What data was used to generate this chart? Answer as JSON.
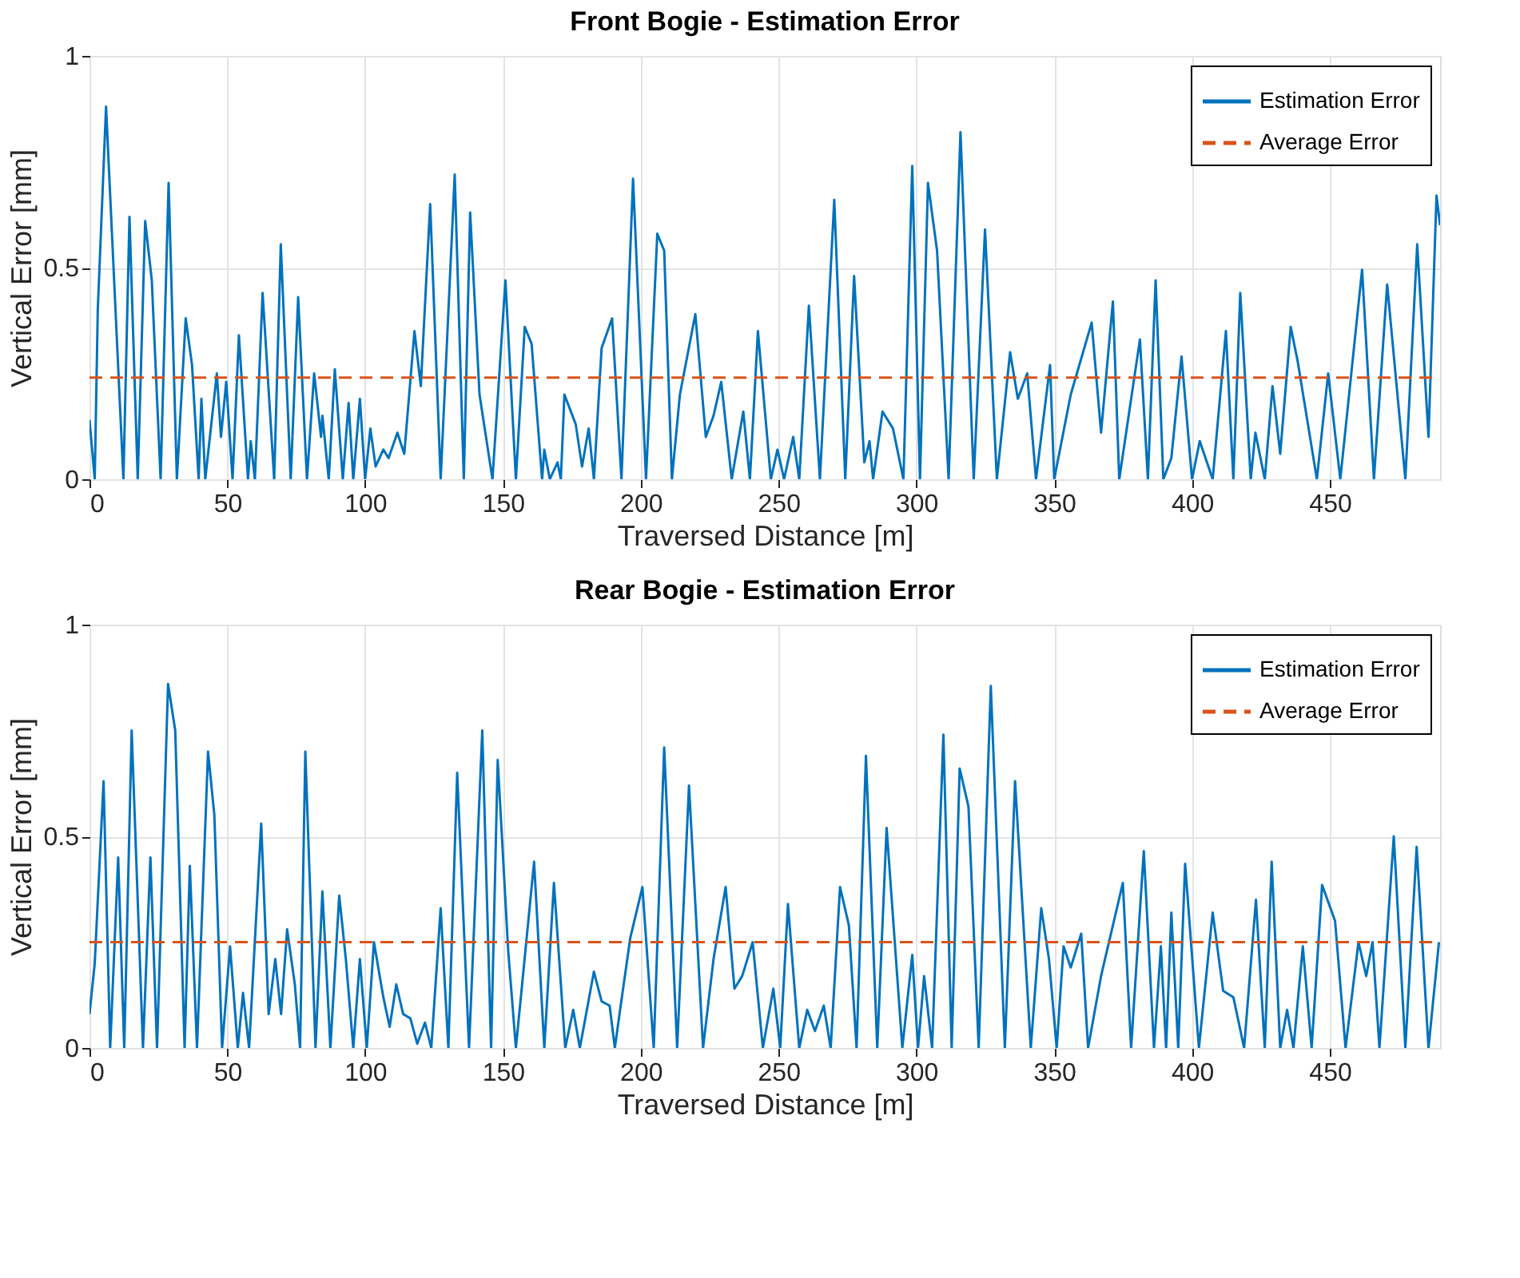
{
  "chart_data": [
    {
      "type": "line",
      "title": "Front Bogie - Estimation Error",
      "xlabel": "Traversed Distance [m]",
      "ylabel": "Vertical Error [mm]",
      "xlim": [
        0,
        490
      ],
      "ylim": [
        0,
        1
      ],
      "xticks": [
        0,
        50,
        100,
        150,
        200,
        250,
        300,
        350,
        400,
        450
      ],
      "yticks": [
        0,
        0.5,
        1
      ],
      "grid": true,
      "legend": "top right",
      "line_style": "solid",
      "marker": "none",
      "series": [
        {
          "name": "Estimation Error",
          "color": "#0072bd",
          "x": [
            0,
            1.9,
            3,
            6,
            12.3,
            14.5,
            17.5,
            20.2,
            22.6,
            25.8,
            28.7,
            31.7,
            34.9,
            37.2,
            39.6,
            40.6,
            42,
            46.2,
            47.7,
            49.6,
            51.9,
            54.2,
            57.5,
            58.5,
            60,
            62.8,
            67,
            69.4,
            73,
            75.7,
            78.9,
            81.5,
            84,
            84.5,
            86.8,
            89,
            91.9,
            94,
            95.7,
            98.1,
            100,
            101.9,
            103.8,
            106.6,
            108.5,
            111.7,
            114.2,
            117.9,
            120.2,
            123.6,
            127.4,
            132.5,
            135.8,
            138.1,
            141.5,
            146.2,
            150.9,
            154.7,
            157.9,
            160.4,
            164.2,
            165,
            167,
            169.8,
            171,
            172.3,
            176.4,
            178.7,
            181.1,
            183,
            185.8,
            189.6,
            193,
            197.2,
            201.9,
            206,
            208.5,
            211.3,
            214.2,
            219.8,
            223.6,
            226.4,
            229.2,
            233,
            237.2,
            239.6,
            242.5,
            247.2,
            249.6,
            252,
            255.3,
            257.5,
            261,
            265,
            270.2,
            274.2,
            277.4,
            281.1,
            283,
            284.3,
            287.7,
            291.5,
            295.3,
            298.5,
            301.3,
            304.2,
            307.5,
            311.7,
            316,
            320.8,
            324.9,
            329.2,
            334,
            336.8,
            340.2,
            343.4,
            348.5,
            350,
            356,
            363.6,
            367,
            371.3,
            373.6,
            381.1,
            384,
            386.8,
            389.6,
            392.5,
            396.2,
            400,
            402.8,
            407.5,
            412.3,
            415,
            417.5,
            421.3,
            423,
            426.4,
            429.2,
            432,
            435.8,
            438.3,
            445.3,
            449.4,
            453.8,
            461.7,
            466,
            470.8,
            477.4,
            481.7,
            485.8,
            488.7,
            490
          ],
          "values": [
            0.14,
            0,
            0.4,
            0.88,
            0,
            0.62,
            0,
            0.61,
            0.47,
            0,
            0.7,
            0,
            0.38,
            0.27,
            0,
            0.19,
            0,
            0.25,
            0.1,
            0.23,
            0,
            0.34,
            0,
            0.09,
            0,
            0.44,
            0,
            0.555,
            0,
            0.43,
            0,
            0.25,
            0.1,
            0.15,
            0,
            0.26,
            0,
            0.18,
            0,
            0.19,
            0,
            0.12,
            0.03,
            0.07,
            0.05,
            0.11,
            0.06,
            0.35,
            0.22,
            0.65,
            0,
            0.72,
            0,
            0.63,
            0.2,
            0,
            0.47,
            0,
            0.36,
            0.32,
            0,
            0.07,
            0,
            0.04,
            0,
            0.2,
            0.13,
            0.03,
            0.12,
            0,
            0.31,
            0.38,
            0,
            0.71,
            0,
            0.58,
            0.54,
            0,
            0.2,
            0.39,
            0.1,
            0.15,
            0.23,
            0,
            0.16,
            0,
            0.35,
            0,
            0.07,
            0,
            0.1,
            0,
            0.41,
            0,
            0.66,
            0,
            0.48,
            0.04,
            0.09,
            0,
            0.16,
            0.12,
            0,
            0.74,
            0,
            0.7,
            0.54,
            0,
            0.82,
            0,
            0.59,
            0,
            0.3,
            0.19,
            0.25,
            0,
            0.27,
            0,
            0.2,
            0.37,
            0.11,
            0.42,
            0,
            0.33,
            0,
            0.47,
            0,
            0.05,
            0.29,
            0,
            0.09,
            0,
            0.35,
            0,
            0.44,
            0,
            0.11,
            0,
            0.22,
            0.06,
            0.36,
            0.28,
            0,
            0.25,
            0,
            0.495,
            0,
            0.46,
            0,
            0.555,
            0.1,
            0.67,
            0.6
          ]
        }
      ],
      "ref_lines": [
        {
          "axis": "y",
          "value": 0.24,
          "label": "Average Error",
          "color": "#d95319",
          "line_style": "dashed"
        }
      ]
    },
    {
      "type": "line",
      "title": "Rear Bogie - Estimation Error",
      "xlabel": "Traversed Distance [m]",
      "ylabel": "Vertical Error [mm]",
      "xlim": [
        0,
        490
      ],
      "ylim": [
        0,
        1
      ],
      "xticks": [
        0,
        50,
        100,
        150,
        200,
        250,
        300,
        350,
        400,
        450
      ],
      "yticks": [
        0,
        0.5,
        1
      ],
      "grid": true,
      "legend": "top right",
      "line_style": "solid",
      "marker": "none",
      "series": [
        {
          "name": "Estimation Error",
          "color": "#0072bd",
          "x": [
            0,
            1.9,
            5.1,
            7.5,
            10.4,
            12.6,
            15.3,
            19.4,
            22.1,
            24.5,
            28.5,
            31.1,
            34.5,
            36.4,
            39,
            43,
            45.3,
            48.1,
            51,
            53.8,
            55.7,
            57.9,
            62.3,
            65,
            67.4,
            69.5,
            71.7,
            74.5,
            76.4,
            78.3,
            82,
            84.5,
            87.4,
            90.6,
            93,
            95.7,
            98.1,
            100.6,
            103.2,
            106.6,
            108.9,
            111.3,
            113.8,
            116.4,
            118.9,
            121.7,
            124,
            127.4,
            130.2,
            133.4,
            137.7,
            142.5,
            145.7,
            148.1,
            151.9,
            154.7,
            161.3,
            165,
            168.5,
            172.6,
            175.5,
            177.9,
            183,
            185.8,
            188.7,
            190.6,
            192.5,
            196.2,
            200.6,
            204.7,
            208.5,
            213.2,
            217.5,
            222.6,
            226.4,
            230.8,
            234,
            236.8,
            240.6,
            244.3,
            248.1,
            250.6,
            253.4,
            257.5,
            260.4,
            263.2,
            266.4,
            268.9,
            272.3,
            275.5,
            278.3,
            281.7,
            285.8,
            289.2,
            294.9,
            298.5,
            300.6,
            302.8,
            305.7,
            309.8,
            312.8,
            315.7,
            318.9,
            322.6,
            327,
            332.1,
            335.8,
            341.5,
            345.3,
            348.1,
            350.9,
            353.4,
            356,
            359.8,
            362.3,
            367,
            374.9,
            377.9,
            382.5,
            386.2,
            388.7,
            390.6,
            392.5,
            395,
            397.5,
            402.5,
            407.5,
            411.3,
            415,
            418.9,
            423.2,
            426.4,
            428.9,
            432,
            434.5,
            436.8,
            440.2,
            443.4,
            447.2,
            451.9,
            455.7,
            460.4,
            463.2,
            465.5,
            468,
            473.2,
            477.4,
            481.5,
            485.8,
            489.6
          ],
          "values": [
            0.08,
            0.2,
            0.63,
            0,
            0.45,
            0,
            0.75,
            0,
            0.45,
            0,
            0.86,
            0.75,
            0,
            0.43,
            0,
            0.7,
            0.55,
            0,
            0.24,
            0,
            0.13,
            0,
            0.53,
            0.08,
            0.21,
            0.08,
            0.28,
            0.15,
            0,
            0.7,
            0,
            0.37,
            0,
            0.36,
            0.21,
            0,
            0.21,
            0,
            0.25,
            0.12,
            0.05,
            0.15,
            0.08,
            0.07,
            0.01,
            0.06,
            0,
            0.33,
            0,
            0.65,
            0,
            0.75,
            0,
            0.68,
            0.23,
            0,
            0.44,
            0,
            0.39,
            0,
            0.09,
            0,
            0.18,
            0.11,
            0.1,
            0,
            0.09,
            0.26,
            0.38,
            0,
            0.71,
            0,
            0.62,
            0,
            0.21,
            0.38,
            0.14,
            0.17,
            0.25,
            0,
            0.14,
            0,
            0.34,
            0,
            0.09,
            0.04,
            0.1,
            0,
            0.38,
            0.29,
            0,
            0.69,
            0,
            0.52,
            0,
            0.22,
            0,
            0.17,
            0,
            0.74,
            0,
            0.66,
            0.57,
            0,
            0.855,
            0,
            0.63,
            0,
            0.33,
            0.21,
            0,
            0.24,
            0.19,
            0.27,
            0,
            0.17,
            0.39,
            0,
            0.465,
            0,
            0.24,
            0,
            0.32,
            0,
            0.435,
            0,
            0.32,
            0.135,
            0.12,
            0,
            0.35,
            0,
            0.44,
            0,
            0.09,
            0,
            0.24,
            0,
            0.385,
            0.3,
            0,
            0.25,
            0.17,
            0.25,
            0,
            0.5,
            0,
            0.475,
            0,
            0.25
          ]
        }
      ],
      "ref_lines": [
        {
          "axis": "y",
          "value": 0.25,
          "label": "Average Error",
          "color": "#d95319",
          "line_style": "dashed"
        }
      ]
    }
  ]
}
